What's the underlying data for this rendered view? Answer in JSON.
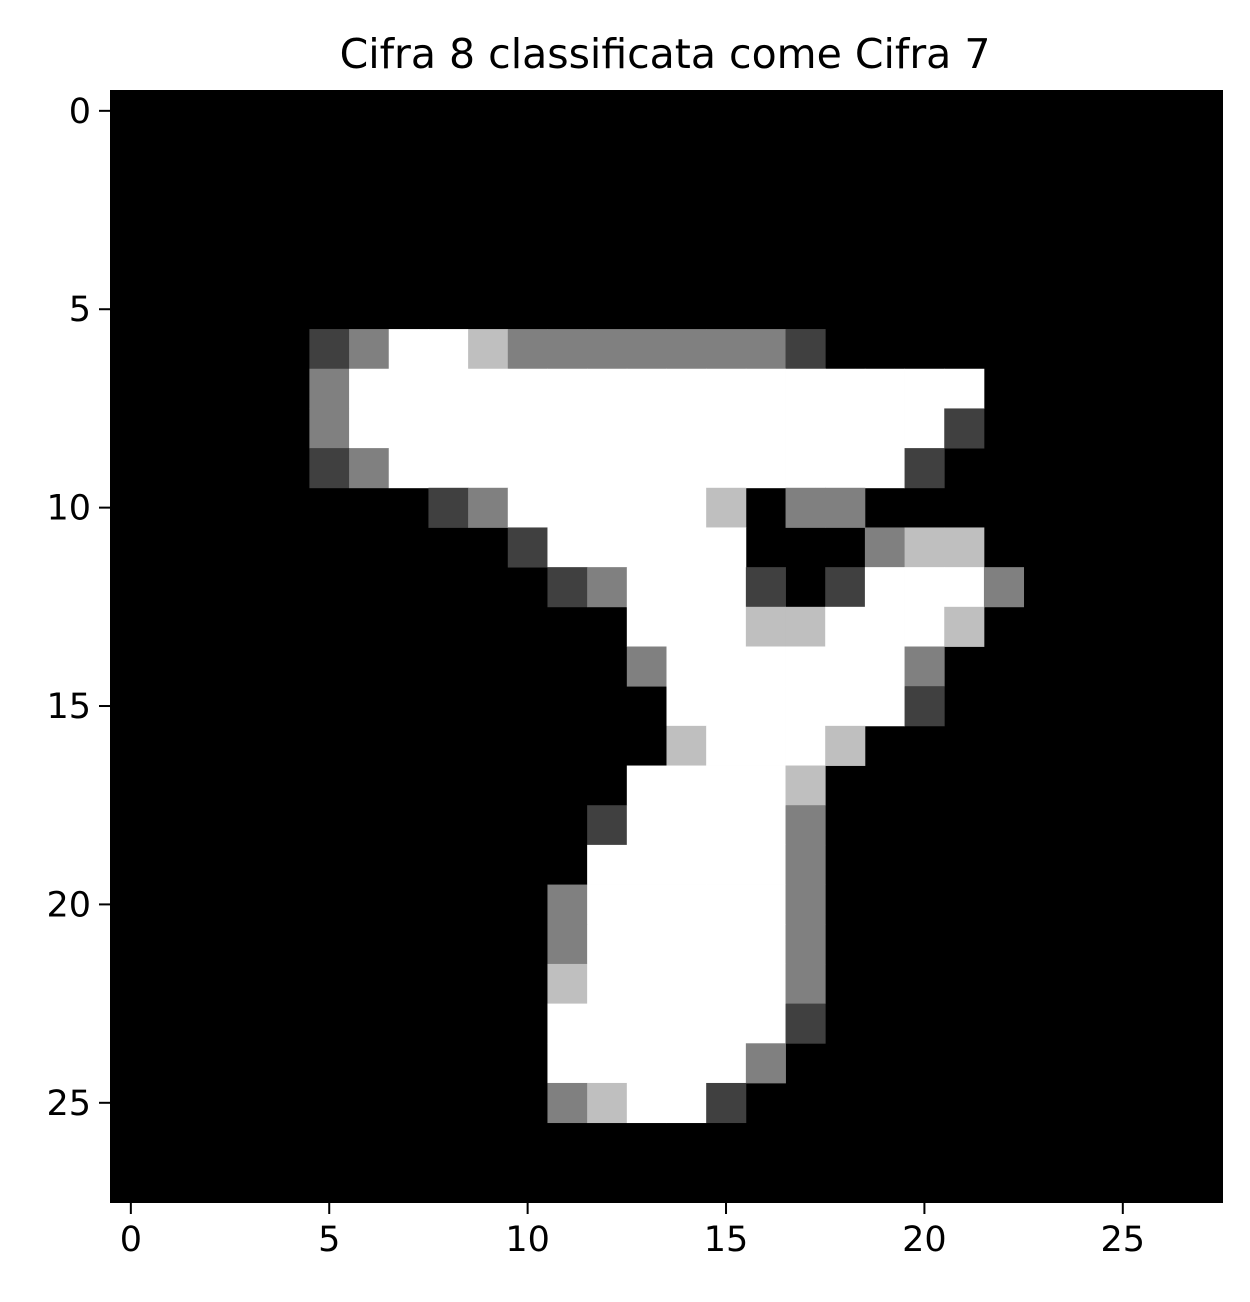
{
  "chart_data": {
    "type": "heatmap",
    "title": "Cifra 8 classificata come Cifra 7",
    "colormap": "gray",
    "background_color": "#000000",
    "value_range": [
      0,
      1
    ],
    "xlim": [
      -0.5,
      27.5
    ],
    "ylim": [
      27.5,
      -0.5
    ],
    "x_ticks": [
      0,
      5,
      10,
      15,
      20,
      25
    ],
    "y_ticks": [
      0,
      5,
      10,
      15,
      20,
      25
    ],
    "x_tick_labels": [
      "0",
      "5",
      "10",
      "15",
      "20",
      "25"
    ],
    "y_tick_labels": [
      "0",
      "5",
      "10",
      "15",
      "20",
      "25"
    ],
    "rows": 28,
    "cols": 28,
    "pixels": [
      {
        "row": 6,
        "cells": [
          [
            5,
            0.25
          ],
          [
            6,
            0.5
          ],
          [
            7,
            1
          ],
          [
            8,
            1
          ],
          [
            9,
            0.75
          ],
          [
            10,
            0.5
          ],
          [
            11,
            0.5
          ],
          [
            12,
            0.5
          ],
          [
            13,
            0.5
          ],
          [
            14,
            0.5
          ],
          [
            15,
            0.5
          ],
          [
            16,
            0.5
          ],
          [
            17,
            0.25
          ]
        ]
      },
      {
        "row": 7,
        "cells": [
          [
            5,
            0.5
          ],
          [
            6,
            1
          ],
          [
            7,
            1
          ],
          [
            8,
            1
          ],
          [
            9,
            1
          ],
          [
            10,
            1
          ],
          [
            11,
            1
          ],
          [
            12,
            1
          ],
          [
            13,
            1
          ],
          [
            14,
            1
          ],
          [
            15,
            1
          ],
          [
            16,
            1
          ],
          [
            17,
            1
          ],
          [
            18,
            1
          ],
          [
            19,
            1
          ],
          [
            20,
            1
          ],
          [
            21,
            1
          ]
        ]
      },
      {
        "row": 8,
        "cells": [
          [
            5,
            0.5
          ],
          [
            6,
            1
          ],
          [
            7,
            1
          ],
          [
            8,
            1
          ],
          [
            9,
            1
          ],
          [
            10,
            1
          ],
          [
            11,
            1
          ],
          [
            12,
            1
          ],
          [
            13,
            1
          ],
          [
            14,
            1
          ],
          [
            15,
            1
          ],
          [
            16,
            1
          ],
          [
            17,
            1
          ],
          [
            18,
            1
          ],
          [
            19,
            1
          ],
          [
            20,
            1
          ],
          [
            21,
            0.25
          ]
        ]
      },
      {
        "row": 9,
        "cells": [
          [
            5,
            0.25
          ],
          [
            6,
            0.5
          ],
          [
            7,
            1
          ],
          [
            8,
            1
          ],
          [
            9,
            1
          ],
          [
            10,
            1
          ],
          [
            11,
            1
          ],
          [
            12,
            1
          ],
          [
            13,
            1
          ],
          [
            14,
            1
          ],
          [
            15,
            1
          ],
          [
            16,
            1
          ],
          [
            17,
            1
          ],
          [
            18,
            1
          ],
          [
            19,
            1
          ],
          [
            20,
            0.25
          ]
        ]
      },
      {
        "row": 10,
        "cells": [
          [
            8,
            0.25
          ],
          [
            9,
            0.5
          ],
          [
            10,
            1
          ],
          [
            11,
            1
          ],
          [
            12,
            1
          ],
          [
            13,
            1
          ],
          [
            14,
            1
          ],
          [
            15,
            0.75
          ],
          [
            17,
            0.5
          ],
          [
            18,
            0.5
          ]
        ]
      },
      {
        "row": 11,
        "cells": [
          [
            10,
            0.25
          ],
          [
            11,
            1
          ],
          [
            12,
            1
          ],
          [
            13,
            1
          ],
          [
            14,
            1
          ],
          [
            15,
            1
          ],
          [
            19,
            0.5
          ],
          [
            20,
            0.75
          ],
          [
            21,
            0.75
          ]
        ]
      },
      {
        "row": 12,
        "cells": [
          [
            11,
            0.25
          ],
          [
            12,
            0.5
          ],
          [
            13,
            1
          ],
          [
            14,
            1
          ],
          [
            15,
            1
          ],
          [
            16,
            0.25
          ],
          [
            18,
            0.25
          ],
          [
            19,
            1
          ],
          [
            20,
            1
          ],
          [
            21,
            1
          ],
          [
            22,
            0.5
          ]
        ]
      },
      {
        "row": 13,
        "cells": [
          [
            13,
            1
          ],
          [
            14,
            1
          ],
          [
            15,
            1
          ],
          [
            16,
            0.75
          ],
          [
            17,
            0.75
          ],
          [
            18,
            1
          ],
          [
            19,
            1
          ],
          [
            20,
            1
          ],
          [
            21,
            0.75
          ]
        ]
      },
      {
        "row": 14,
        "cells": [
          [
            13,
            0.5
          ],
          [
            14,
            1
          ],
          [
            15,
            1
          ],
          [
            16,
            1
          ],
          [
            17,
            1
          ],
          [
            18,
            1
          ],
          [
            19,
            1
          ],
          [
            20,
            0.5
          ]
        ]
      },
      {
        "row": 15,
        "cells": [
          [
            14,
            1
          ],
          [
            15,
            1
          ],
          [
            16,
            1
          ],
          [
            17,
            1
          ],
          [
            18,
            1
          ],
          [
            19,
            1
          ],
          [
            20,
            0.25
          ]
        ]
      },
      {
        "row": 16,
        "cells": [
          [
            14,
            0.75
          ],
          [
            15,
            1
          ],
          [
            16,
            1
          ],
          [
            17,
            1
          ],
          [
            18,
            0.75
          ]
        ]
      },
      {
        "row": 17,
        "cells": [
          [
            13,
            1
          ],
          [
            14,
            1
          ],
          [
            15,
            1
          ],
          [
            16,
            1
          ],
          [
            17,
            0.75
          ]
        ]
      },
      {
        "row": 18,
        "cells": [
          [
            12,
            0.25
          ],
          [
            13,
            1
          ],
          [
            14,
            1
          ],
          [
            15,
            1
          ],
          [
            16,
            1
          ],
          [
            17,
            0.5
          ]
        ]
      },
      {
        "row": 19,
        "cells": [
          [
            12,
            1
          ],
          [
            13,
            1
          ],
          [
            14,
            1
          ],
          [
            15,
            1
          ],
          [
            16,
            1
          ],
          [
            17,
            0.5
          ]
        ]
      },
      {
        "row": 20,
        "cells": [
          [
            11,
            0.5
          ],
          [
            12,
            1
          ],
          [
            13,
            1
          ],
          [
            14,
            1
          ],
          [
            15,
            1
          ],
          [
            16,
            1
          ],
          [
            17,
            0.5
          ]
        ]
      },
      {
        "row": 21,
        "cells": [
          [
            11,
            0.5
          ],
          [
            12,
            1
          ],
          [
            13,
            1
          ],
          [
            14,
            1
          ],
          [
            15,
            1
          ],
          [
            16,
            1
          ],
          [
            17,
            0.5
          ]
        ]
      },
      {
        "row": 22,
        "cells": [
          [
            11,
            0.75
          ],
          [
            12,
            1
          ],
          [
            13,
            1
          ],
          [
            14,
            1
          ],
          [
            15,
            1
          ],
          [
            16,
            1
          ],
          [
            17,
            0.5
          ]
        ]
      },
      {
        "row": 23,
        "cells": [
          [
            11,
            1
          ],
          [
            12,
            1
          ],
          [
            13,
            1
          ],
          [
            14,
            1
          ],
          [
            15,
            1
          ],
          [
            16,
            1
          ],
          [
            17,
            0.25
          ]
        ]
      },
      {
        "row": 24,
        "cells": [
          [
            11,
            1
          ],
          [
            12,
            1
          ],
          [
            13,
            1
          ],
          [
            14,
            1
          ],
          [
            15,
            1
          ],
          [
            16,
            0.5
          ]
        ]
      },
      {
        "row": 25,
        "cells": [
          [
            11,
            0.5
          ],
          [
            12,
            0.75
          ],
          [
            13,
            1
          ],
          [
            14,
            1
          ],
          [
            15,
            0.25
          ]
        ]
      }
    ]
  }
}
